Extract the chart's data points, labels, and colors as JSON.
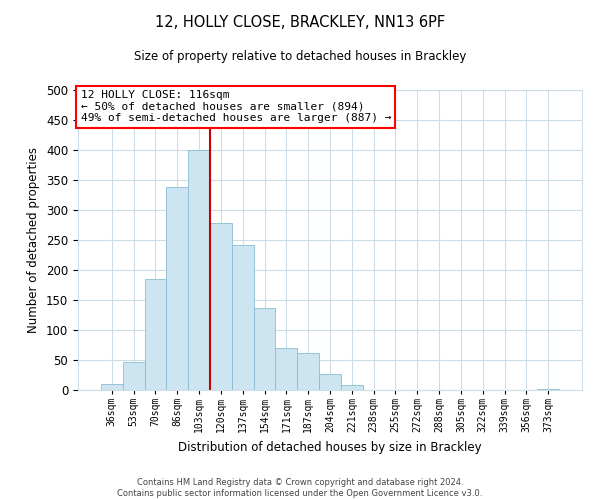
{
  "title_line1": "12, HOLLY CLOSE, BRACKLEY, NN13 6PF",
  "title_line2": "Size of property relative to detached houses in Brackley",
  "xlabel": "Distribution of detached houses by size in Brackley",
  "ylabel": "Number of detached properties",
  "bar_labels": [
    "36sqm",
    "53sqm",
    "70sqm",
    "86sqm",
    "103sqm",
    "120sqm",
    "137sqm",
    "154sqm",
    "171sqm",
    "187sqm",
    "204sqm",
    "221sqm",
    "238sqm",
    "255sqm",
    "272sqm",
    "288sqm",
    "305sqm",
    "322sqm",
    "339sqm",
    "356sqm",
    "373sqm"
  ],
  "bar_values": [
    10,
    47,
    185,
    338,
    400,
    278,
    242,
    137,
    70,
    62,
    26,
    8,
    0,
    0,
    0,
    0,
    0,
    0,
    0,
    0,
    2
  ],
  "bar_color": "#cce5f0",
  "bar_edge_color": "#8bbdd4",
  "vline_color": "#cc0000",
  "vline_x_index": 4.5,
  "annotation_text": "12 HOLLY CLOSE: 116sqm\n← 50% of detached houses are smaller (894)\n49% of semi-detached houses are larger (887) →",
  "ylim": [
    0,
    500
  ],
  "yticks": [
    0,
    50,
    100,
    150,
    200,
    250,
    300,
    350,
    400,
    450,
    500
  ],
  "footer": "Contains HM Land Registry data © Crown copyright and database right 2024.\nContains public sector information licensed under the Open Government Licence v3.0.",
  "background_color": "#ffffff",
  "grid_color": "#ccdde8"
}
